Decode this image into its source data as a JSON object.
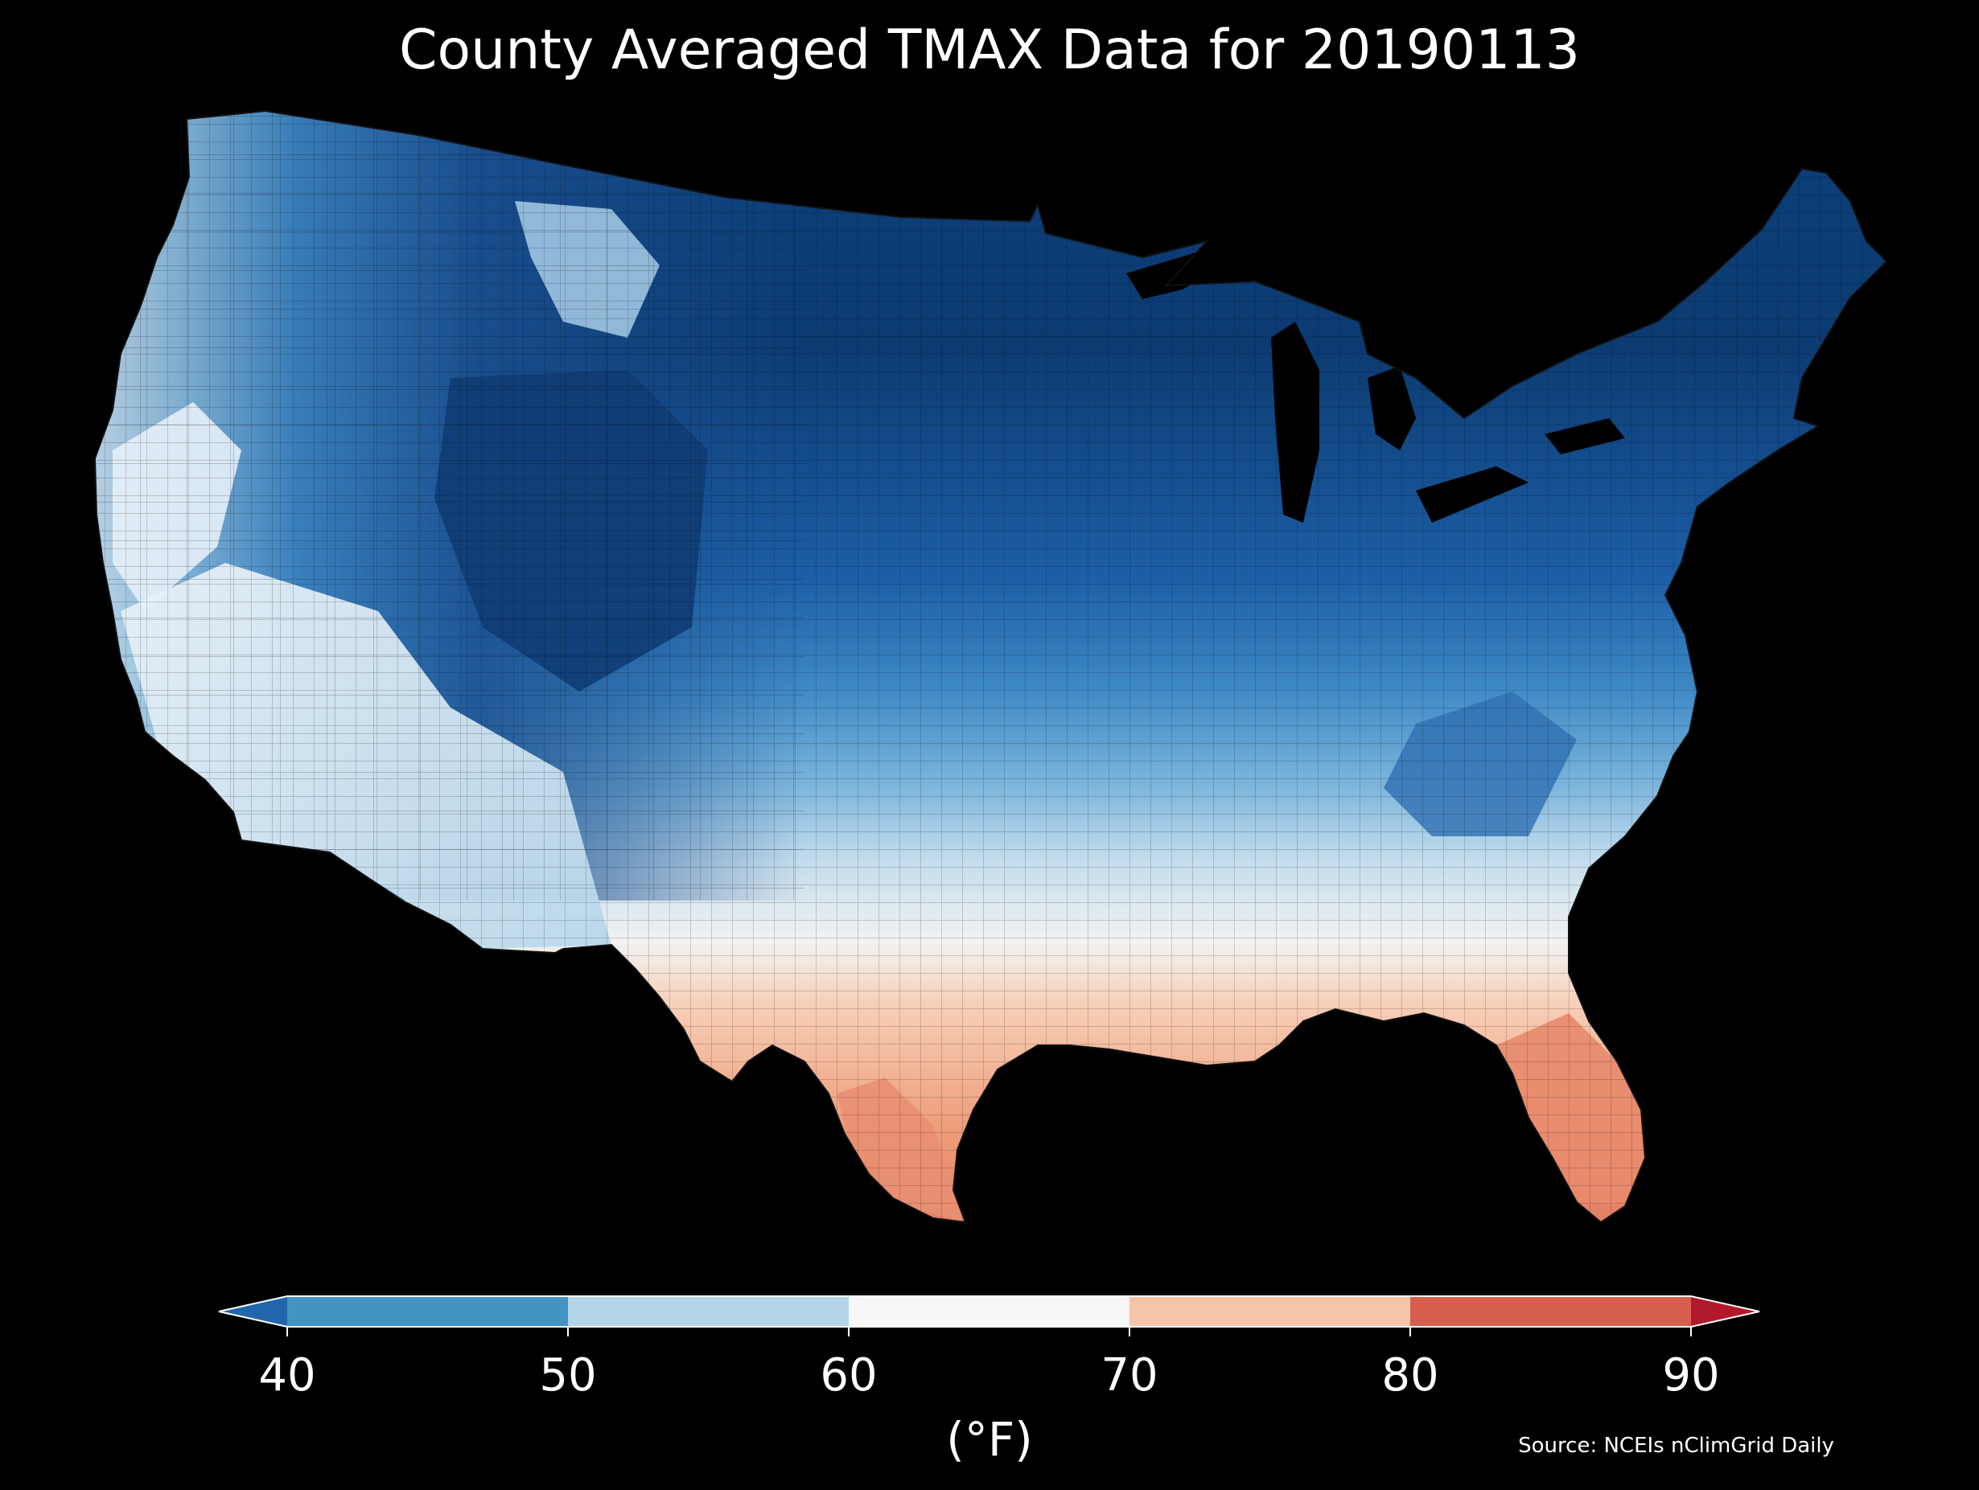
{
  "title": "County Averaged TMAX Data for 20190113",
  "map": {
    "region": "Contiguous United States",
    "unit": "(°F)",
    "source": "Source: NCEIs nClimGrid Daily",
    "colors": {
      "background": "#000000",
      "county_lines": "#1a1a1a"
    },
    "colorbar": {
      "ticks": [
        "40",
        "50",
        "60",
        "70",
        "80",
        "90"
      ],
      "bins": [
        {
          "range": "<40",
          "color": "#2166ac"
        },
        {
          "range": "40-50",
          "color": "#4393c3"
        },
        {
          "range": "50-60",
          "color": "#b2d5e7"
        },
        {
          "range": "60-70",
          "color": "#f7f7f7"
        },
        {
          "range": "70-80",
          "color": "#f6c4a9"
        },
        {
          "range": "80-90",
          "color": "#d6604d"
        },
        {
          "range": ">90",
          "color": "#b2182b"
        }
      ],
      "extend": "both"
    }
  }
}
